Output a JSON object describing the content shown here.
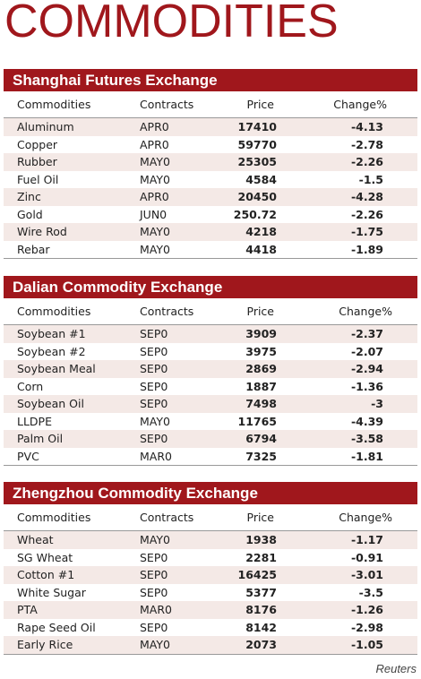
{
  "title": "COMMODITIES",
  "credit": "Reuters",
  "columns": {
    "commodity": "Commodities",
    "contract": "Contracts",
    "price": "Price",
    "change": "Change%"
  },
  "sections": [
    {
      "name": "Shanghai Futures Exchange",
      "rows": [
        {
          "commodity": "Aluminum",
          "contract": "APR0",
          "price": "17410",
          "change": "-4.13"
        },
        {
          "commodity": "Copper",
          "contract": "APR0",
          "price": "59770",
          "change": "-2.78"
        },
        {
          "commodity": "Rubber",
          "contract": "MAY0",
          "price": "25305",
          "change": "-2.26"
        },
        {
          "commodity": "Fuel Oil",
          "contract": "MAY0",
          "price": "4584",
          "change": "-1.5"
        },
        {
          "commodity": "Zinc",
          "contract": "APR0",
          "price": "20450",
          "change": "-4.28"
        },
        {
          "commodity": "Gold",
          "contract": "JUN0",
          "price": "250.72",
          "change": "-2.26"
        },
        {
          "commodity": "Wire Rod",
          "contract": "MAY0",
          "price": "4218",
          "change": "-1.75"
        },
        {
          "commodity": "Rebar",
          "contract": "MAY0",
          "price": "4418",
          "change": "-1.89"
        }
      ]
    },
    {
      "name": "Dalian Commodity Exchange",
      "rows": [
        {
          "commodity": "Soybean #1",
          "contract": "SEP0",
          "price": "3909",
          "change": "-2.37"
        },
        {
          "commodity": "Soybean #2",
          "contract": "SEP0",
          "price": "3975",
          "change": "-2.07"
        },
        {
          "commodity": "Soybean Meal",
          "contract": "SEP0",
          "price": "2869",
          "change": "-2.94"
        },
        {
          "commodity": "Corn",
          "contract": "SEP0",
          "price": "1887",
          "change": "-1.36"
        },
        {
          "commodity": "Soybean Oil",
          "contract": "SEP0",
          "price": "7498",
          "change": "-3"
        },
        {
          "commodity": "LLDPE",
          "contract": "MAY0",
          "price": "11765",
          "change": "-4.39"
        },
        {
          "commodity": "Palm Oil",
          "contract": "SEP0",
          "price": "6794",
          "change": "-3.58"
        },
        {
          "commodity": "PVC",
          "contract": "MAR0",
          "price": "7325",
          "change": "-1.81"
        }
      ]
    },
    {
      "name": "Zhengzhou Commodity Exchange",
      "rows": [
        {
          "commodity": "Wheat",
          "contract": "MAY0",
          "price": "1938",
          "change": "-1.17"
        },
        {
          "commodity": "SG Wheat",
          "contract": "SEP0",
          "price": "2281",
          "change": "-0.91"
        },
        {
          "commodity": "Cotton #1",
          "contract": "SEP0",
          "price": "16425",
          "change": "-3.01"
        },
        {
          "commodity": "White Sugar",
          "contract": "SEP0",
          "price": "5377",
          "change": "-3.5"
        },
        {
          "commodity": "PTA",
          "contract": "MAR0",
          "price": "8176",
          "change": "-1.26"
        },
        {
          "commodity": "Rape Seed Oil",
          "contract": "SEP0",
          "price": "8142",
          "change": "-2.98"
        },
        {
          "commodity": "Early Rice",
          "contract": "MAY0",
          "price": "2073",
          "change": "-1.05"
        }
      ]
    }
  ]
}
